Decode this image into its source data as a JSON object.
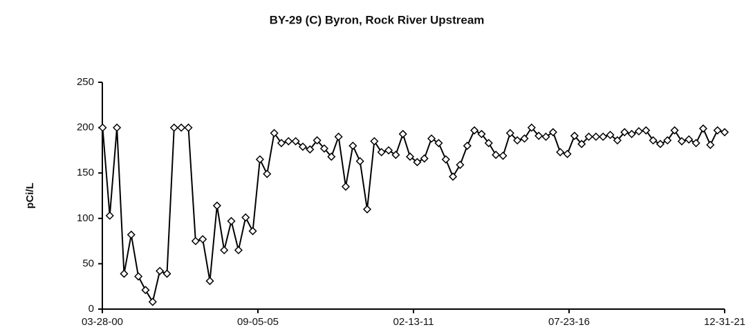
{
  "chart_data": {
    "type": "line",
    "title": "BY-29 (C) Byron, Rock River Upstream",
    "y_label": "pCi/L",
    "color": "#000000",
    "marker": "diamond",
    "x": [
      2000.25,
      2000.5,
      2000.75,
      2001,
      2001.25,
      2001.5,
      2001.75,
      2002,
      2002.25,
      2002.5,
      2002.75,
      2003,
      2003.25,
      2003.5,
      2003.75,
      2004,
      2004.25,
      2004.5,
      2004.75,
      2005,
      2005.25,
      2005.5,
      2005.75,
      2006,
      2006.25,
      2006.5,
      2006.75,
      2007,
      2007.25,
      2007.5,
      2007.75,
      2008,
      2008.25,
      2008.5,
      2008.75,
      2009,
      2009.25,
      2009.5,
      2009.75,
      2010,
      2010.25,
      2010.5,
      2010.75,
      2011,
      2011.25,
      2011.5,
      2011.75,
      2012,
      2012.25,
      2012.5,
      2012.75,
      2013,
      2013.25,
      2013.5,
      2013.75,
      2014,
      2014.25,
      2014.5,
      2014.75,
      2015,
      2015.25,
      2015.5,
      2015.75,
      2016,
      2016.25,
      2016.5,
      2016.75,
      2017,
      2017.25,
      2017.5,
      2017.75,
      2018,
      2018.25,
      2018.5,
      2018.75,
      2019,
      2019.25,
      2019.5,
      2019.75,
      2020,
      2020.25,
      2020.5,
      2020.75,
      2021,
      2021.25,
      2021.5,
      2021.75,
      2022
    ],
    "values": [
      200,
      103,
      200,
      39,
      82,
      36,
      21,
      8,
      42,
      39,
      200,
      200,
      200,
      75,
      77,
      31,
      114,
      65,
      97,
      65,
      101,
      86,
      165,
      149,
      194,
      183,
      185,
      185,
      179,
      176,
      186,
      177,
      168,
      190,
      135,
      180,
      163,
      110,
      185,
      173,
      175,
      170,
      193,
      168,
      162,
      166,
      188,
      183,
      165,
      146,
      159,
      180,
      197,
      193,
      183,
      170,
      169,
      194,
      186,
      188,
      200,
      191,
      190,
      195,
      173,
      171,
      191,
      182,
      190,
      190,
      190,
      192,
      186,
      195,
      193,
      196,
      197,
      186,
      182,
      186,
      197,
      185,
      187,
      183,
      199,
      181,
      197,
      195
    ],
    "xlim": [
      2000.24,
      2022.0
    ],
    "xticks": [
      {
        "value": 2000.24,
        "label": "03-28-00"
      },
      {
        "value": 2005.68,
        "label": "09-05-05"
      },
      {
        "value": 2011.12,
        "label": "02-13-11"
      },
      {
        "value": 2016.56,
        "label": "07-23-16"
      },
      {
        "value": 2022.0,
        "label": "12-31-21"
      }
    ],
    "ylim": [
      0,
      250
    ],
    "yticks": [
      0,
      50,
      100,
      150,
      200,
      250
    ],
    "grid": false
  }
}
